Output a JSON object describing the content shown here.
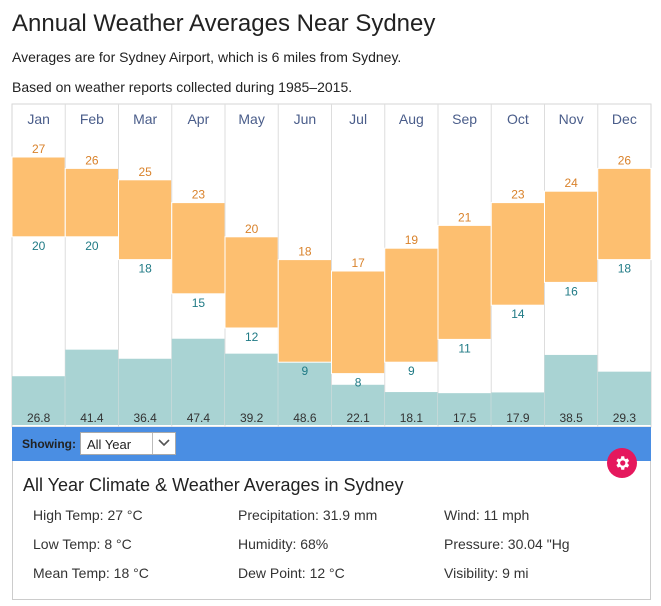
{
  "header": {
    "title": "Annual Weather Averages Near Sydney",
    "subtitle1": "Averages are for Sydney Airport, which is 6 miles from Sydney.",
    "subtitle2": "Based on weather reports collected during 1985–2015."
  },
  "chart_data": {
    "type": "bar",
    "title": "Annual Weather Averages Near Sydney",
    "categories": [
      "Jan",
      "Feb",
      "Mar",
      "Apr",
      "May",
      "Jun",
      "Jul",
      "Aug",
      "Sep",
      "Oct",
      "Nov",
      "Dec"
    ],
    "series": [
      {
        "name": "High Temp (°C)",
        "values": [
          27,
          26,
          25,
          23,
          20,
          18,
          17,
          19,
          21,
          23,
          24,
          26
        ]
      },
      {
        "name": "Low Temp (°C)",
        "values": [
          20,
          20,
          18,
          15,
          12,
          9,
          8,
          9,
          11,
          14,
          16,
          18
        ]
      },
      {
        "name": "Precipitation",
        "values_label": [
          "26.8",
          "41.4",
          "36.4",
          "47.4",
          "39.2",
          "48.6",
          "22.1",
          "18.1",
          "17.5",
          "17.9",
          "38.5",
          "29.3"
        ],
        "values": [
          26.8,
          41.4,
          36.4,
          47.4,
          39.2,
          48.6,
          22.1,
          18.1,
          17.5,
          17.9,
          38.5,
          29.3
        ]
      }
    ],
    "colors": {
      "temp_band": "#fdbf70",
      "precip_bar": "#a9d3d3",
      "high_text": "#d9822b",
      "low_text": "#1f7a85",
      "month_text": "#4a5d8a"
    }
  },
  "controls": {
    "showing_label": "Showing:",
    "selected": "All Year"
  },
  "summary": {
    "title": "All Year Climate & Weather Averages in Sydney",
    "high_temp": "High Temp: 27 °C",
    "low_temp": "Low Temp: 8 °C",
    "mean_temp": "Mean Temp: 18 °C",
    "precipitation": "Precipitation: 31.9 mm",
    "humidity": "Humidity: 68%",
    "dew_point": "Dew Point: 12 °C",
    "wind": "Wind: 11 mph",
    "pressure": "Pressure: 30.04 \"Hg",
    "visibility": "Visibility: 9 mi"
  },
  "colors": {
    "accent": "#4a8ee3",
    "gear": "#e5185d"
  }
}
